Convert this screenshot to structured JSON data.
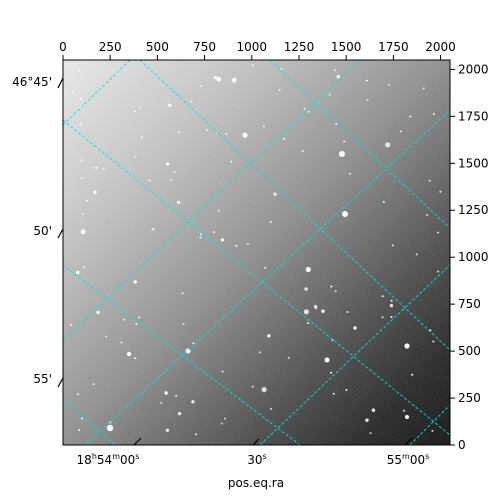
{
  "chart_data": {
    "type": "image",
    "title": "",
    "xlabel": "pos.eq.ra",
    "ylabel": "",
    "pixel_axes": {
      "x": {
        "ticks": [
          0,
          250,
          500,
          750,
          1000,
          1250,
          1500,
          1750,
          2000
        ],
        "range": [
          0,
          2050
        ]
      },
      "y": {
        "ticks": [
          0,
          250,
          500,
          750,
          1000,
          1250,
          1500,
          1750,
          2000
        ],
        "range": [
          0,
          2050
        ]
      }
    },
    "world_axes": {
      "ra_tick_labels": [
        {
          "h": "18",
          "hs": "h",
          "m": "54",
          "ms": "m",
          "s": "00",
          "ss": "s"
        },
        {
          "h": "",
          "hs": "",
          "m": "",
          "ms": "",
          "s": "30",
          "ss": "s"
        },
        {
          "h": "",
          "hs": "",
          "m": "55",
          "ms": "m",
          "s": "00",
          "ss": "s"
        }
      ],
      "dec_tick_labels": [
        "46°45'",
        "50'",
        "55'"
      ]
    },
    "grid": {
      "on": true,
      "color": "#00e5e5",
      "style": "dashed"
    },
    "colormap": "gray",
    "background_gradient": "bright upper-left to dark lower-right"
  }
}
